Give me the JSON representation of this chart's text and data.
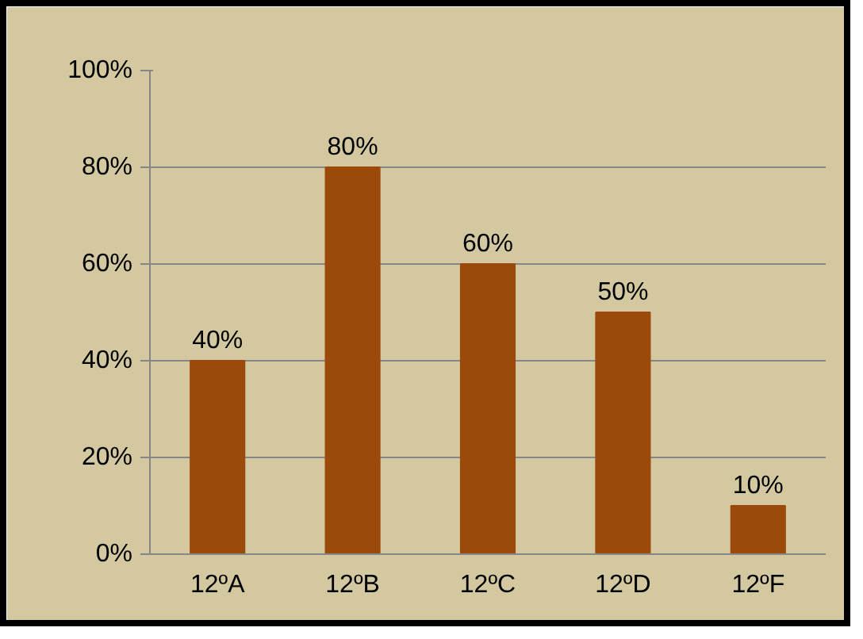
{
  "chart_data": {
    "type": "bar",
    "categories": [
      "12ºA",
      "12ºB",
      "12ºC",
      "12ºD",
      "12ºF"
    ],
    "values": [
      40,
      80,
      60,
      50,
      10
    ],
    "value_labels": [
      "40%",
      "80%",
      "60%",
      "50%",
      "10%"
    ],
    "color": "#9c4a0b",
    "ylim": [
      0,
      100
    ],
    "yticks": [
      {
        "value": 0,
        "label": "0%"
      },
      {
        "value": 20,
        "label": "20%"
      },
      {
        "value": 40,
        "label": "40%"
      },
      {
        "value": 60,
        "label": "60%"
      },
      {
        "value": 80,
        "label": "80%"
      },
      {
        "value": 100,
        "label": "100%"
      }
    ],
    "grid": "y"
  }
}
